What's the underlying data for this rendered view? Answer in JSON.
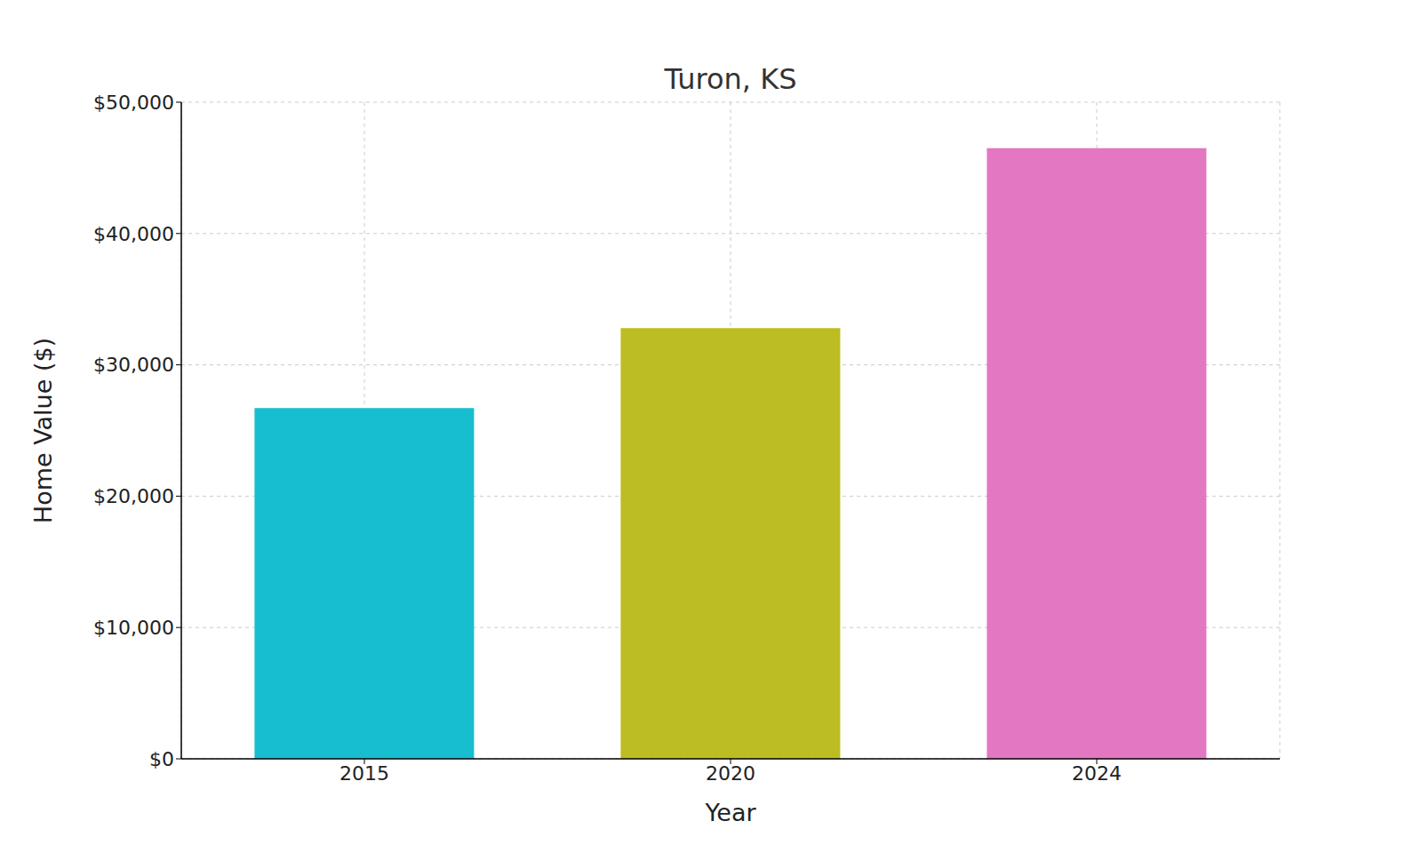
{
  "chart_data": {
    "type": "bar",
    "title": "Turon, KS",
    "x_label": "Year",
    "y_label": "Home Value ($)",
    "categories": [
      "2015",
      "2020",
      "2024"
    ],
    "values": [
      26700,
      32800,
      46500
    ],
    "colors": [
      "#17becf",
      "#bcbd22",
      "#e377c2"
    ],
    "ylim": [
      0,
      50000
    ],
    "yticks": [
      {
        "value": 0,
        "label": "$0"
      },
      {
        "value": 10000,
        "label": "$10,000"
      },
      {
        "value": 20000,
        "label": "$20,000"
      },
      {
        "value": 30000,
        "label": "$30,000"
      },
      {
        "value": 40000,
        "label": "$40,000"
      },
      {
        "value": 50000,
        "label": "$50,000"
      }
    ],
    "grid": true
  }
}
